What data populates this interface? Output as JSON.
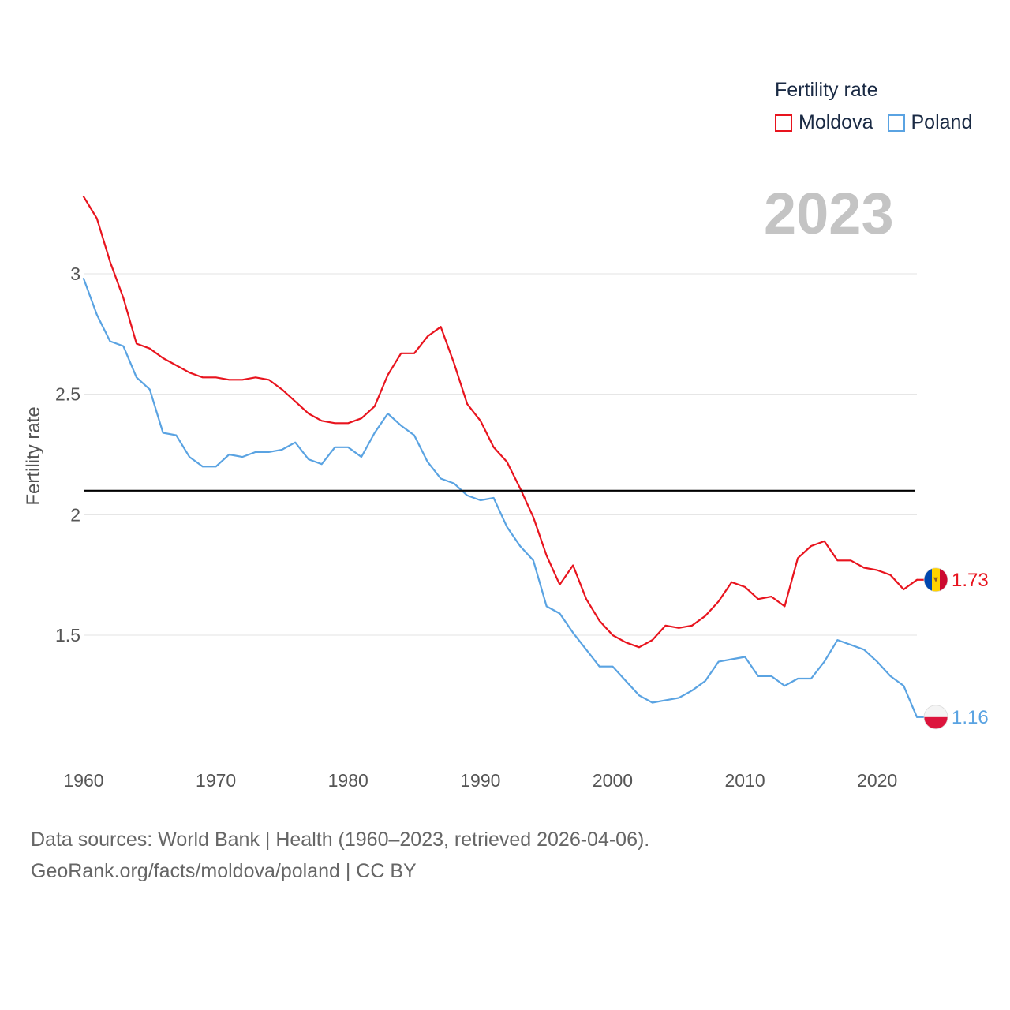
{
  "legend": {
    "title": "Fertility rate",
    "items": [
      {
        "label": "Moldova",
        "color": "#e8141e"
      },
      {
        "label": "Poland",
        "color": "#5aa3e2"
      }
    ]
  },
  "year_badge": "2023",
  "source": {
    "line1": "Data sources: World Bank | Health (1960–2023, retrieved 2026-04-06).",
    "line2": "GeoRank.org/facts/moldova/poland | CC BY"
  },
  "chart_data": {
    "type": "line",
    "title": "",
    "xlabel": "",
    "ylabel": "Fertility rate",
    "xlim": [
      1960,
      2023
    ],
    "ylim": [
      1.0,
      3.35
    ],
    "x_ticks": [
      1960,
      1970,
      1980,
      1990,
      2000,
      2010,
      2020
    ],
    "x_tick_labels": [
      "1960",
      "1970",
      "1980",
      "1990",
      "2000",
      "2010",
      "2020"
    ],
    "y_ticks": [
      1.5,
      2,
      2.5,
      3
    ],
    "y_tick_labels": [
      "1.5",
      "2",
      "2.5",
      "3"
    ],
    "grid": true,
    "reference_line": {
      "value": 2.1,
      "color": "#000000"
    },
    "x": [
      1960,
      1961,
      1962,
      1963,
      1964,
      1965,
      1966,
      1967,
      1968,
      1969,
      1970,
      1971,
      1972,
      1973,
      1974,
      1975,
      1976,
      1977,
      1978,
      1979,
      1980,
      1981,
      1982,
      1983,
      1984,
      1985,
      1986,
      1987,
      1988,
      1989,
      1990,
      1991,
      1992,
      1993,
      1994,
      1995,
      1996,
      1997,
      1998,
      1999,
      2000,
      2001,
      2002,
      2003,
      2004,
      2005,
      2006,
      2007,
      2008,
      2009,
      2010,
      2011,
      2012,
      2013,
      2014,
      2015,
      2016,
      2017,
      2018,
      2019,
      2020,
      2021,
      2022,
      2023
    ],
    "series": [
      {
        "name": "Moldova",
        "color": "#e8141e",
        "end_label": "1.73",
        "values": [
          3.32,
          3.23,
          3.05,
          2.9,
          2.71,
          2.69,
          2.65,
          2.62,
          2.59,
          2.57,
          2.57,
          2.56,
          2.56,
          2.57,
          2.56,
          2.52,
          2.47,
          2.42,
          2.39,
          2.38,
          2.38,
          2.4,
          2.45,
          2.58,
          2.67,
          2.67,
          2.74,
          2.78,
          2.63,
          2.46,
          2.39,
          2.28,
          2.22,
          2.11,
          1.99,
          1.83,
          1.71,
          1.79,
          1.65,
          1.56,
          1.5,
          1.47,
          1.45,
          1.48,
          1.54,
          1.53,
          1.54,
          1.58,
          1.64,
          1.72,
          1.7,
          1.65,
          1.66,
          1.62,
          1.82,
          1.87,
          1.89,
          1.81,
          1.81,
          1.78,
          1.77,
          1.75,
          1.69,
          1.73
        ]
      },
      {
        "name": "Poland",
        "color": "#5aa3e2",
        "end_label": "1.16",
        "values": [
          2.98,
          2.83,
          2.72,
          2.7,
          2.57,
          2.52,
          2.34,
          2.33,
          2.24,
          2.2,
          2.2,
          2.25,
          2.24,
          2.26,
          2.26,
          2.27,
          2.3,
          2.23,
          2.21,
          2.28,
          2.28,
          2.24,
          2.34,
          2.42,
          2.37,
          2.33,
          2.22,
          2.15,
          2.13,
          2.08,
          2.06,
          2.07,
          1.95,
          1.87,
          1.81,
          1.62,
          1.59,
          1.51,
          1.44,
          1.37,
          1.37,
          1.31,
          1.25,
          1.22,
          1.23,
          1.24,
          1.27,
          1.31,
          1.39,
          1.4,
          1.41,
          1.33,
          1.33,
          1.29,
          1.32,
          1.32,
          1.39,
          1.48,
          1.46,
          1.44,
          1.39,
          1.33,
          1.29,
          1.16
        ]
      }
    ]
  }
}
